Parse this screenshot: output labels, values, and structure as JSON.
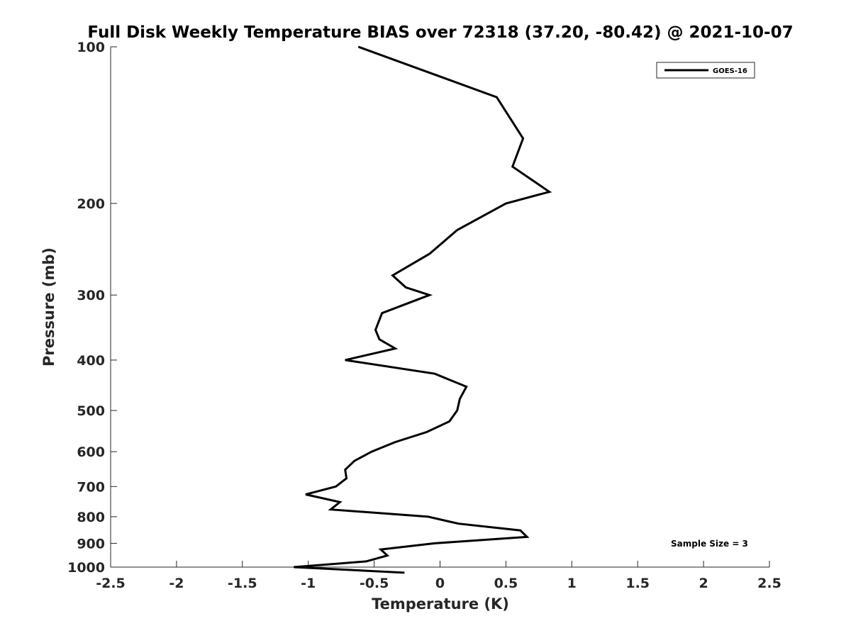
{
  "chart_data": {
    "type": "line",
    "title": "Full Disk Weekly Temperature BIAS over 72318 (37.20, -80.42) @ 2021-10-07",
    "xlabel": "Temperature (K)",
    "ylabel": "Pressure (mb)",
    "xlim": [
      -2.5,
      2.5
    ],
    "ylim": [
      100,
      1000
    ],
    "y_scale": "log",
    "y_reversed": true,
    "grid": false,
    "legend_position": "top-right",
    "x_ticks": [
      "-2.5",
      "-2",
      "-1.5",
      "-1",
      "-0.5",
      "0",
      "0.5",
      "1",
      "1.5",
      "2",
      "2.5"
    ],
    "y_ticks": [
      "100",
      "200",
      "300",
      "400",
      "500",
      "600",
      "700",
      "800",
      "900",
      "1000"
    ],
    "series": [
      {
        "name": "GOES-16",
        "color": "#000000",
        "x": [
          -0.62,
          0.43,
          0.63,
          0.55,
          0.83,
          0.5,
          0.13,
          -0.08,
          -0.36,
          -0.26,
          -0.08,
          -0.44,
          -0.49,
          -0.46,
          -0.34,
          -0.72,
          -0.04,
          0.2,
          0.15,
          0.13,
          0.07,
          -0.1,
          -0.34,
          -0.52,
          -0.65,
          -0.72,
          -0.71,
          -0.79,
          -1.02,
          -0.76,
          -0.83,
          -0.09,
          0.14,
          0.61,
          0.66,
          -0.04,
          -0.45,
          -0.4,
          -0.56,
          -1.11,
          -0.27
        ],
        "y": [
          100,
          125,
          150,
          170,
          190,
          200,
          225,
          250,
          275,
          290,
          300,
          325,
          350,
          365,
          380,
          400,
          425,
          450,
          475,
          500,
          525,
          550,
          575,
          600,
          625,
          650,
          675,
          700,
          725,
          750,
          775,
          800,
          825,
          850,
          875,
          900,
          925,
          950,
          975,
          1000,
          1025
        ]
      }
    ],
    "annotations": [
      "Sample Size = 3"
    ]
  }
}
